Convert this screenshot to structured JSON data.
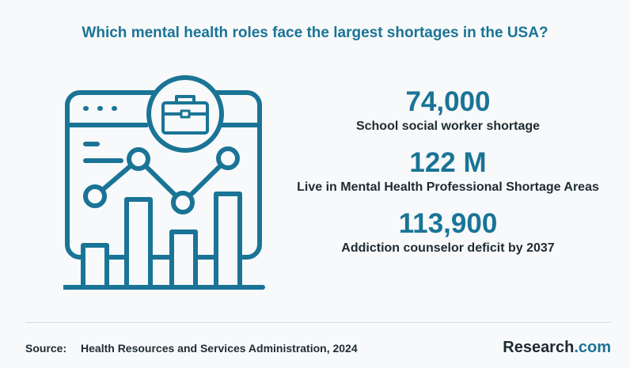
{
  "title": "Which mental health roles face the largest shortages in the USA?",
  "illustration": {
    "icons": [
      "browser-window-icon",
      "briefcase-icon",
      "bar-chart-icon",
      "line-chart-icon"
    ],
    "accent_color": "#1a7496"
  },
  "stats": [
    {
      "value": "74,000",
      "label": "School social worker shortage"
    },
    {
      "value": "122 M",
      "label": "Live in Mental Health Professional Shortage Areas"
    },
    {
      "value": "113,900",
      "label": "Addiction counselor deficit by 2037"
    }
  ],
  "footer": {
    "source_label": "Source:",
    "source_text": "Health Resources and Services Administration, 2024",
    "brand_name": "Research",
    "brand_tld": ".com"
  },
  "colors": {
    "accent": "#1a7496",
    "text_dark": "#1f2b33",
    "background": "#f7f9fa"
  }
}
